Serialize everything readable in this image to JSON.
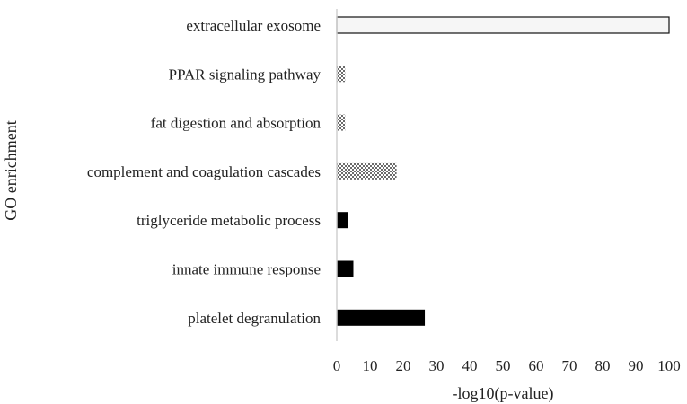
{
  "chart_data": {
    "type": "bar",
    "orientation": "horizontal",
    "title": "",
    "xlabel": "-log10(p-value)",
    "ylabel": "GO enrichment",
    "xlim": [
      0,
      100
    ],
    "xticks": [
      "0",
      "10",
      "20",
      "30",
      "40",
      "50",
      "60",
      "70",
      "80",
      "90",
      "100"
    ],
    "grid": false,
    "legend": "none",
    "categories": [
      "extracellular exosome",
      "PPAR signaling pathway",
      "fat digestion and absorption",
      "complement and coagulation cascades",
      "triglyceride metabolic process",
      "innate immune response",
      "platelet degranulation"
    ],
    "values": [
      100,
      2.5,
      2.5,
      18,
      3.5,
      5,
      26.5
    ],
    "fills": [
      "white",
      "checker",
      "checker",
      "checker",
      "black",
      "black",
      "black"
    ]
  }
}
